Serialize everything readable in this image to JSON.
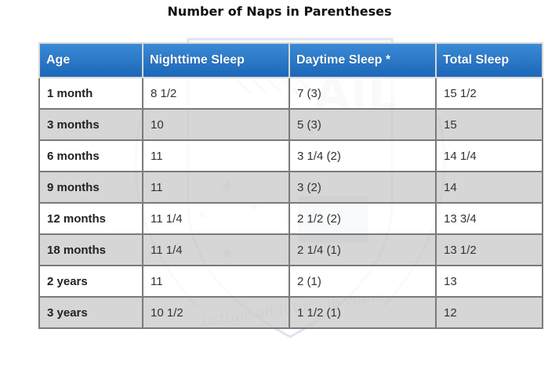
{
  "title": "Number of Naps in Parentheses",
  "table": {
    "headers": [
      "Age",
      "Nighttime Sleep",
      "Daytime Sleep *",
      "Total Sleep"
    ],
    "rows": [
      [
        "1 month",
        "8 1/2",
        "7 (3)",
        "15 1/2"
      ],
      [
        "3 months",
        "10",
        "5 (3)",
        "15"
      ],
      [
        "6 months",
        "11",
        "3 1/4 (2)",
        "14 1/4"
      ],
      [
        "9 months",
        "11",
        "3 (2)",
        "14"
      ],
      [
        "12 months",
        "11 1/4",
        "2 1/2 (2)",
        "13 3/4"
      ],
      [
        "18 months",
        "11 1/4",
        "2 1/4 (1)",
        "13 1/2"
      ],
      [
        "2 years",
        "11",
        "2 (1)",
        "13"
      ],
      [
        "3 years",
        "10 1/2",
        "1 1/2 (1)",
        "12"
      ]
    ]
  },
  "watermark": {
    "letters": "AIL",
    "motto": "Ostium ad futura in vobis"
  },
  "colors": {
    "header_bg": "#2172c7",
    "header_text": "#ffffff",
    "shaded_row": "#cdcdcd",
    "border": "#7a7a7a"
  }
}
